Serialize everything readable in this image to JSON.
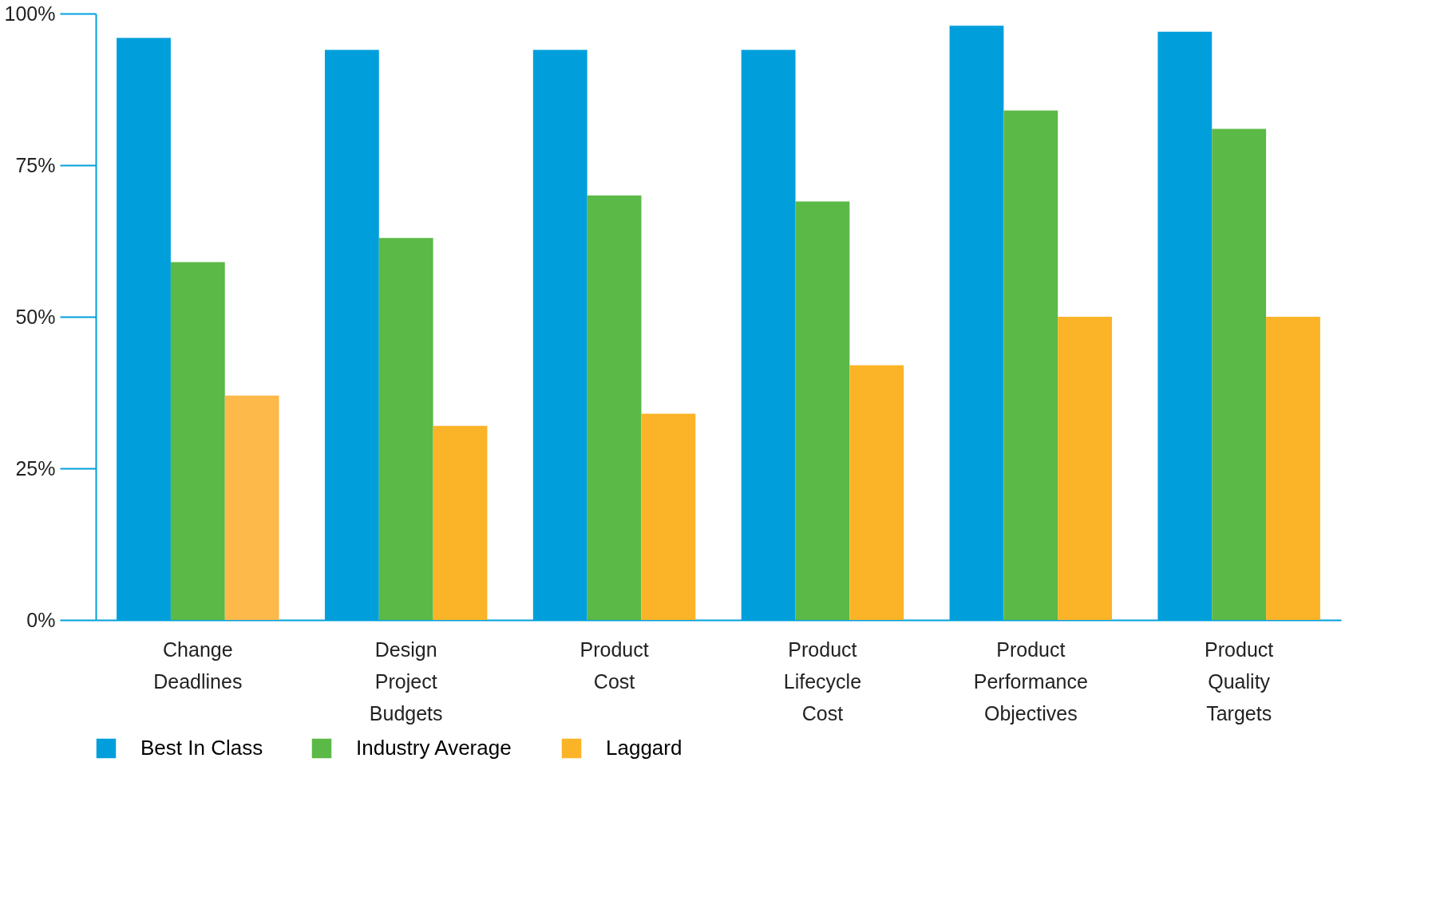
{
  "chart_data": {
    "type": "bar",
    "categories": [
      "Change Deadlines",
      "Design Project Budgets",
      "Product Cost",
      "Product Lifecycle Cost",
      "Product Performance Objectives",
      "Product Quality Targets"
    ],
    "series": [
      {
        "name": "Best In Class",
        "color": "#009fdb",
        "values": [
          96,
          94,
          94,
          94,
          98,
          97
        ]
      },
      {
        "name": "Industry Average",
        "color": "#5bb947",
        "values": [
          59,
          63,
          70,
          69,
          84,
          81
        ]
      },
      {
        "name": "Laggard",
        "color": "#fbb427",
        "colors": [
          "#fdb94a",
          "#fbb427",
          "#fbb427",
          "#fbb427",
          "#fbb427",
          "#fbb427"
        ],
        "values": [
          37,
          32,
          34,
          42,
          50,
          50
        ]
      }
    ],
    "ylim": [
      0,
      100
    ],
    "yticks": [
      {
        "value": 0,
        "label": "0%"
      },
      {
        "value": 25,
        "label": "25%"
      },
      {
        "value": 50,
        "label": "50%"
      },
      {
        "value": 75,
        "label": "75%"
      },
      {
        "value": 100,
        "label": "100%"
      }
    ],
    "grid": false,
    "legend": "bottom"
  }
}
